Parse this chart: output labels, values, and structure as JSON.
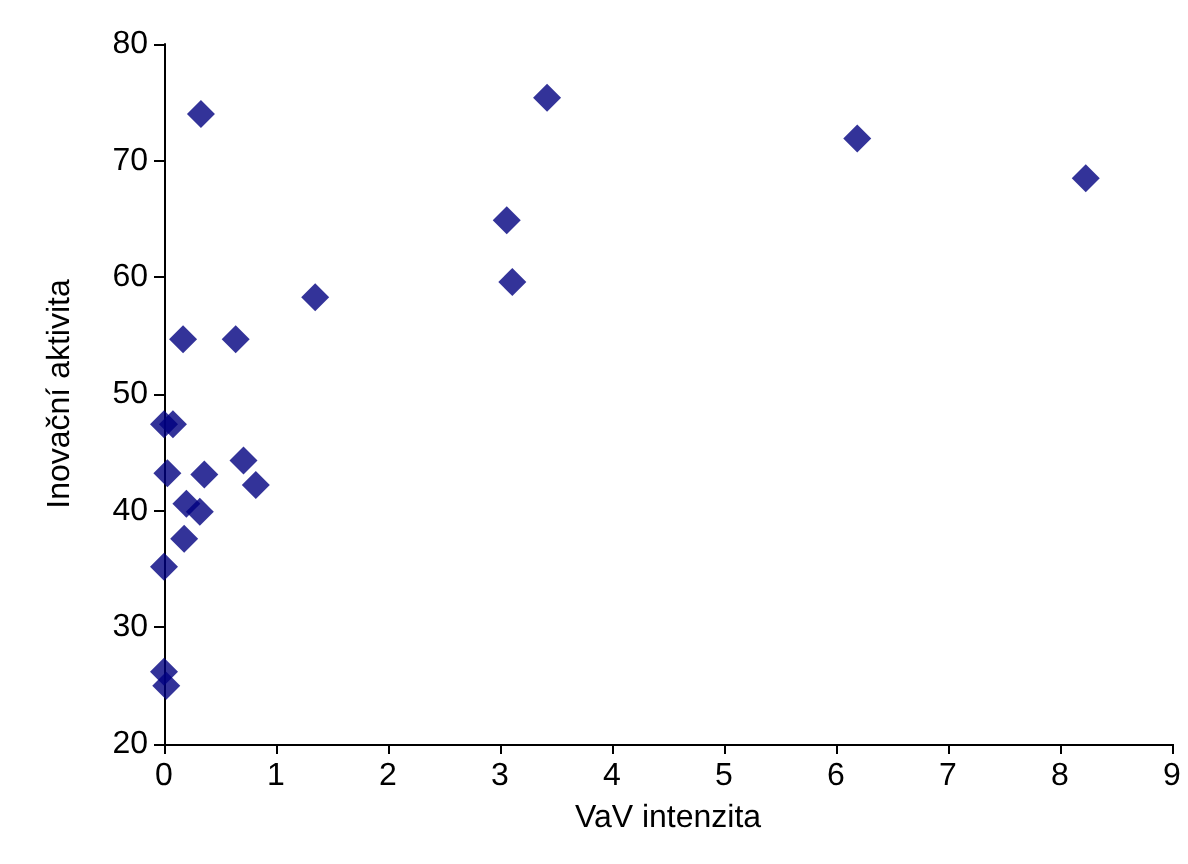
{
  "chart_data": {
    "type": "scatter",
    "xlabel": "VaV intenzita",
    "ylabel": "Inovační aktivita",
    "x": [
      0.33,
      1.35,
      0.17,
      0.64,
      0.0,
      0.08,
      0.03,
      0.36,
      0.71,
      0.82,
      0.2,
      0.32,
      0.18,
      0.0,
      0.0,
      0.02,
      3.42,
      6.19,
      8.23,
      3.06,
      3.11
    ],
    "values": [
      74.0,
      58.3,
      54.7,
      54.7,
      47.4,
      47.4,
      43.2,
      43.1,
      44.3,
      42.2,
      40.6,
      39.9,
      37.6,
      35.2,
      26.2,
      25.0,
      75.4,
      71.9,
      68.5,
      64.9,
      59.6
    ],
    "color": "#000080",
    "marker": "diamond",
    "xlim": [
      0,
      9
    ],
    "xticks": [
      0,
      1,
      2,
      3,
      4,
      5,
      6,
      7,
      8,
      9
    ],
    "ylim": [
      20,
      80
    ],
    "yticks": [
      20,
      30,
      40,
      50,
      60,
      70,
      80
    ],
    "grid": false
  }
}
